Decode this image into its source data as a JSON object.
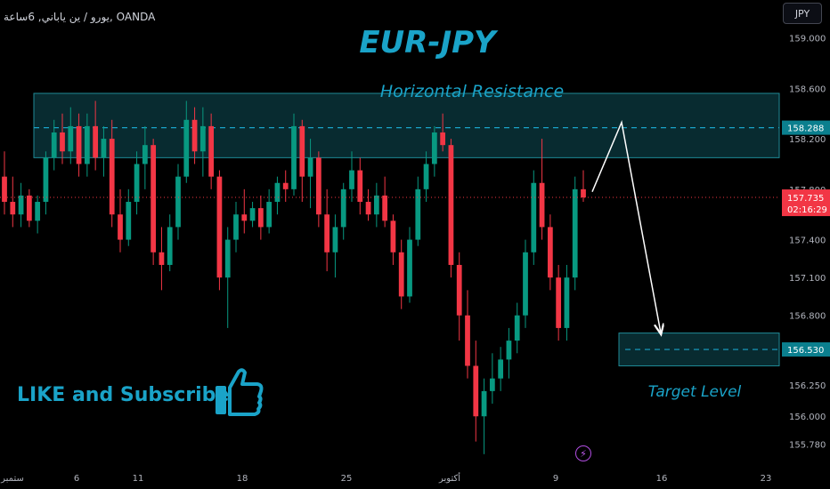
{
  "header": {
    "symbol_text": "يورو / ين ياباني, 6ساعة, OANDA",
    "currency_button": "JPY"
  },
  "annotations": {
    "title": "EUR-JPY",
    "resistance_label": "Horizontal Resistance",
    "target_label": "Target Level",
    "like_text": "LIKE and Subscribe",
    "thumb_icon": "thumbs-up-icon",
    "bolt_icon": "lightning-icon"
  },
  "colors": {
    "background": "#000000",
    "up": "#089981",
    "down": "#f23645",
    "accent": "#1aa3c8",
    "zone_fill": "#0b3a40",
    "zone_border": "#1f8a96",
    "price_tag": "#f23645",
    "level_tag": "#0b7f8e"
  },
  "price_axis": {
    "ticks": [
      "159.000",
      "158.600",
      "158.200",
      "157.800",
      "157.400",
      "157.100",
      "156.800",
      "156.250",
      "156.000",
      "155.780"
    ],
    "current_price": "157.735",
    "countdown": "02:16:29",
    "resistance_level": "158.288",
    "target_level": "156.530"
  },
  "time_axis": {
    "ticks": [
      "ستمبر",
      "6",
      "11",
      "18",
      "25",
      "أكتوبر",
      "9",
      "16",
      "23"
    ]
  },
  "chart_data": {
    "type": "candlestick",
    "symbol": "EUR/JPY",
    "timeframe": "6h",
    "broker": "OANDA",
    "ylim": [
      155.6,
      159.3
    ],
    "grid": false,
    "resistance_zone": [
      158.05,
      158.56
    ],
    "resistance_level": 158.288,
    "target_zone": [
      156.4,
      156.66
    ],
    "target_level": 156.53,
    "current_price": 157.735,
    "projection_path": [
      [
        1,
        158.33
      ],
      [
        2,
        157.78
      ],
      [
        3,
        156.66
      ]
    ],
    "candles": [
      {
        "o": 157.9,
        "h": 158.1,
        "l": 157.6,
        "c": 157.7
      },
      {
        "o": 157.7,
        "h": 157.9,
        "l": 157.5,
        "c": 157.6
      },
      {
        "o": 157.6,
        "h": 157.85,
        "l": 157.5,
        "c": 157.75
      },
      {
        "o": 157.75,
        "h": 157.8,
        "l": 157.5,
        "c": 157.55
      },
      {
        "o": 157.55,
        "h": 157.75,
        "l": 157.45,
        "c": 157.7
      },
      {
        "o": 157.7,
        "h": 158.1,
        "l": 157.6,
        "c": 158.05
      },
      {
        "o": 158.05,
        "h": 158.35,
        "l": 157.95,
        "c": 158.25
      },
      {
        "o": 158.25,
        "h": 158.4,
        "l": 158.0,
        "c": 158.1
      },
      {
        "o": 158.1,
        "h": 158.45,
        "l": 158.0,
        "c": 158.3
      },
      {
        "o": 158.3,
        "h": 158.4,
        "l": 157.9,
        "c": 158.0
      },
      {
        "o": 158.0,
        "h": 158.4,
        "l": 157.9,
        "c": 158.3
      },
      {
        "o": 158.3,
        "h": 158.5,
        "l": 157.95,
        "c": 158.05
      },
      {
        "o": 158.05,
        "h": 158.3,
        "l": 157.9,
        "c": 158.2
      },
      {
        "o": 158.2,
        "h": 158.35,
        "l": 157.5,
        "c": 157.6
      },
      {
        "o": 157.6,
        "h": 157.8,
        "l": 157.3,
        "c": 157.4
      },
      {
        "o": 157.4,
        "h": 157.8,
        "l": 157.35,
        "c": 157.7
      },
      {
        "o": 157.7,
        "h": 158.1,
        "l": 157.6,
        "c": 158.0
      },
      {
        "o": 158.0,
        "h": 158.3,
        "l": 157.8,
        "c": 158.15
      },
      {
        "o": 158.15,
        "h": 158.2,
        "l": 157.2,
        "c": 157.3
      },
      {
        "o": 157.3,
        "h": 157.5,
        "l": 157.0,
        "c": 157.2
      },
      {
        "o": 157.2,
        "h": 157.6,
        "l": 157.15,
        "c": 157.5
      },
      {
        "o": 157.5,
        "h": 158.0,
        "l": 157.4,
        "c": 157.9
      },
      {
        "o": 157.9,
        "h": 158.5,
        "l": 157.85,
        "c": 158.35
      },
      {
        "o": 158.35,
        "h": 158.45,
        "l": 158.0,
        "c": 158.1
      },
      {
        "o": 158.1,
        "h": 158.45,
        "l": 157.9,
        "c": 158.3
      },
      {
        "o": 158.3,
        "h": 158.4,
        "l": 157.8,
        "c": 157.9
      },
      {
        "o": 157.9,
        "h": 157.95,
        "l": 157.0,
        "c": 157.1
      },
      {
        "o": 157.1,
        "h": 157.5,
        "l": 156.7,
        "c": 157.4
      },
      {
        "o": 157.4,
        "h": 157.7,
        "l": 157.3,
        "c": 157.6
      },
      {
        "o": 157.6,
        "h": 157.8,
        "l": 157.45,
        "c": 157.55
      },
      {
        "o": 157.55,
        "h": 157.7,
        "l": 157.5,
        "c": 157.65
      },
      {
        "o": 157.65,
        "h": 157.75,
        "l": 157.4,
        "c": 157.5
      },
      {
        "o": 157.5,
        "h": 157.8,
        "l": 157.45,
        "c": 157.7
      },
      {
        "o": 157.7,
        "h": 157.9,
        "l": 157.6,
        "c": 157.85
      },
      {
        "o": 157.85,
        "h": 157.95,
        "l": 157.7,
        "c": 157.8
      },
      {
        "o": 157.8,
        "h": 158.4,
        "l": 157.75,
        "c": 158.3
      },
      {
        "o": 158.3,
        "h": 158.35,
        "l": 157.7,
        "c": 157.9
      },
      {
        "o": 157.9,
        "h": 158.2,
        "l": 157.65,
        "c": 158.05
      },
      {
        "o": 158.05,
        "h": 158.1,
        "l": 157.5,
        "c": 157.6
      },
      {
        "o": 157.6,
        "h": 157.8,
        "l": 157.15,
        "c": 157.3
      },
      {
        "o": 157.3,
        "h": 157.6,
        "l": 157.1,
        "c": 157.5
      },
      {
        "o": 157.5,
        "h": 157.85,
        "l": 157.4,
        "c": 157.8
      },
      {
        "o": 157.8,
        "h": 158.1,
        "l": 157.7,
        "c": 157.95
      },
      {
        "o": 157.95,
        "h": 158.05,
        "l": 157.6,
        "c": 157.7
      },
      {
        "o": 157.7,
        "h": 157.8,
        "l": 157.55,
        "c": 157.6
      },
      {
        "o": 157.6,
        "h": 157.85,
        "l": 157.5,
        "c": 157.75
      },
      {
        "o": 157.75,
        "h": 157.9,
        "l": 157.5,
        "c": 157.55
      },
      {
        "o": 157.55,
        "h": 157.6,
        "l": 157.2,
        "c": 157.3
      },
      {
        "o": 157.3,
        "h": 157.4,
        "l": 156.85,
        "c": 156.95
      },
      {
        "o": 156.95,
        "h": 157.5,
        "l": 156.9,
        "c": 157.4
      },
      {
        "o": 157.4,
        "h": 157.9,
        "l": 157.35,
        "c": 157.8
      },
      {
        "o": 157.8,
        "h": 158.1,
        "l": 157.7,
        "c": 158.0
      },
      {
        "o": 158.0,
        "h": 158.3,
        "l": 157.9,
        "c": 158.25
      },
      {
        "o": 158.25,
        "h": 158.4,
        "l": 158.1,
        "c": 158.15
      },
      {
        "o": 158.15,
        "h": 158.2,
        "l": 157.1,
        "c": 157.2
      },
      {
        "o": 157.2,
        "h": 157.3,
        "l": 156.6,
        "c": 156.8
      },
      {
        "o": 156.8,
        "h": 157.0,
        "l": 156.3,
        "c": 156.4
      },
      {
        "o": 156.4,
        "h": 156.6,
        "l": 155.8,
        "c": 156.0
      },
      {
        "o": 156.0,
        "h": 156.3,
        "l": 155.7,
        "c": 156.2
      },
      {
        "o": 156.2,
        "h": 156.5,
        "l": 156.1,
        "c": 156.3
      },
      {
        "o": 156.3,
        "h": 156.55,
        "l": 156.2,
        "c": 156.45
      },
      {
        "o": 156.45,
        "h": 156.7,
        "l": 156.3,
        "c": 156.6
      },
      {
        "o": 156.6,
        "h": 156.9,
        "l": 156.5,
        "c": 156.8
      },
      {
        "o": 156.8,
        "h": 157.4,
        "l": 156.7,
        "c": 157.3
      },
      {
        "o": 157.3,
        "h": 157.95,
        "l": 157.2,
        "c": 157.85
      },
      {
        "o": 157.85,
        "h": 158.2,
        "l": 157.4,
        "c": 157.5
      },
      {
        "o": 157.5,
        "h": 157.6,
        "l": 157.0,
        "c": 157.1
      },
      {
        "o": 157.1,
        "h": 157.2,
        "l": 156.6,
        "c": 156.7
      },
      {
        "o": 156.7,
        "h": 157.2,
        "l": 156.6,
        "c": 157.1
      },
      {
        "o": 157.1,
        "h": 157.9,
        "l": 157.0,
        "c": 157.8
      },
      {
        "o": 157.8,
        "h": 157.95,
        "l": 157.7,
        "c": 157.735
      }
    ]
  }
}
